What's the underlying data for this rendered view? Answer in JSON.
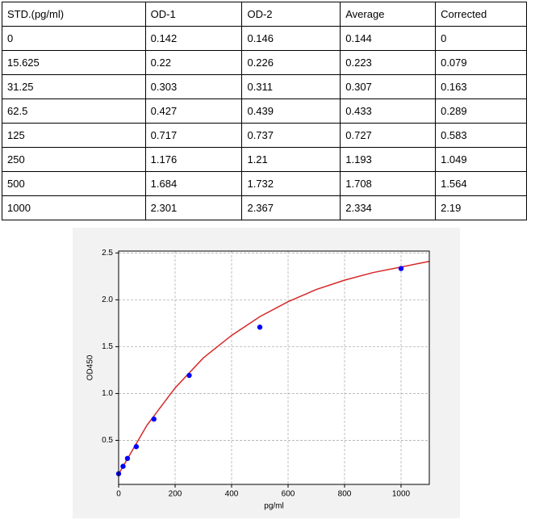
{
  "table": {
    "header": [
      "STD.(pg/ml)",
      "OD-1",
      "OD-2",
      "Average",
      "Corrected"
    ],
    "rows": [
      [
        "0",
        "0.142",
        "0.146",
        "0.144",
        "0"
      ],
      [
        "15.625",
        "0.22",
        "0.226",
        "0.223",
        "0.079"
      ],
      [
        "31.25",
        "0.303",
        "0.311",
        "0.307",
        "0.163"
      ],
      [
        "62.5",
        "0.427",
        "0.439",
        "0.433",
        "0.289"
      ],
      [
        "125",
        "0.717",
        "0.737",
        "0.727",
        "0.583"
      ],
      [
        "250",
        "1.176",
        "1.21",
        "1.193",
        "1.049"
      ],
      [
        "500",
        "1.684",
        "1.732",
        "1.708",
        "1.564"
      ],
      [
        "1000",
        "2.301",
        "2.367",
        "2.334",
        "2.19"
      ]
    ]
  },
  "chart_data": {
    "type": "scatter",
    "x_label": "pg/ml",
    "y_label": "OD450",
    "xlim": [
      0,
      1100
    ],
    "ylim": [
      0.03,
      2.52
    ],
    "xticks": [
      0,
      200,
      400,
      600,
      800,
      1000
    ],
    "yticks": [
      0.5,
      {
        "value": 1.0,
        "label": "1.0"
      },
      1.5,
      {
        "value": 2.0,
        "label": "2.0"
      },
      2.5
    ],
    "grid": true,
    "series": [
      {
        "type": "line",
        "color": "#d62728",
        "x": [
          0,
          100,
          200,
          300,
          400,
          500,
          600,
          700,
          800,
          900,
          1000,
          1100
        ],
        "values": [
          0.14,
          0.66,
          1.06,
          1.38,
          1.62,
          1.82,
          1.98,
          2.11,
          2.21,
          2.29,
          2.35,
          2.41
        ]
      },
      {
        "type": "scatter",
        "color": "#0000ff",
        "x": [
          0,
          15.625,
          31.25,
          62.5,
          125,
          250,
          500,
          1000
        ],
        "values": [
          0.144,
          0.223,
          0.307,
          0.433,
          0.727,
          1.193,
          1.708,
          2.334
        ]
      }
    ]
  }
}
